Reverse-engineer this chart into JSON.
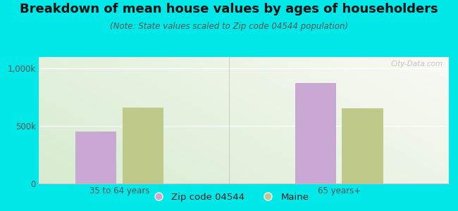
{
  "title": "Breakdown of mean house values by ages of householders",
  "subtitle": "(Note: State values scaled to Zip code 04544 population)",
  "categories": [
    "35 to 64 years",
    "65 years+"
  ],
  "zip_values": [
    450000,
    875000
  ],
  "state_values": [
    660000,
    655000
  ],
  "zip_color": "#c9a8d4",
  "state_color": "#bfc98a",
  "background_color": "#00e8e8",
  "ylim": [
    0,
    1100000
  ],
  "yticks": [
    0,
    500000,
    1000000
  ],
  "ytick_labels": [
    "0",
    "500k",
    "1,000k"
  ],
  "legend_zip_label": "Zip code 04544",
  "legend_state_label": "Maine",
  "bar_width": 0.28,
  "group_positions": [
    0.85,
    2.35
  ],
  "title_fontsize": 13,
  "subtitle_fontsize": 8.5,
  "tick_fontsize": 8.5,
  "legend_fontsize": 9.5,
  "watermark": "City-Data.com"
}
